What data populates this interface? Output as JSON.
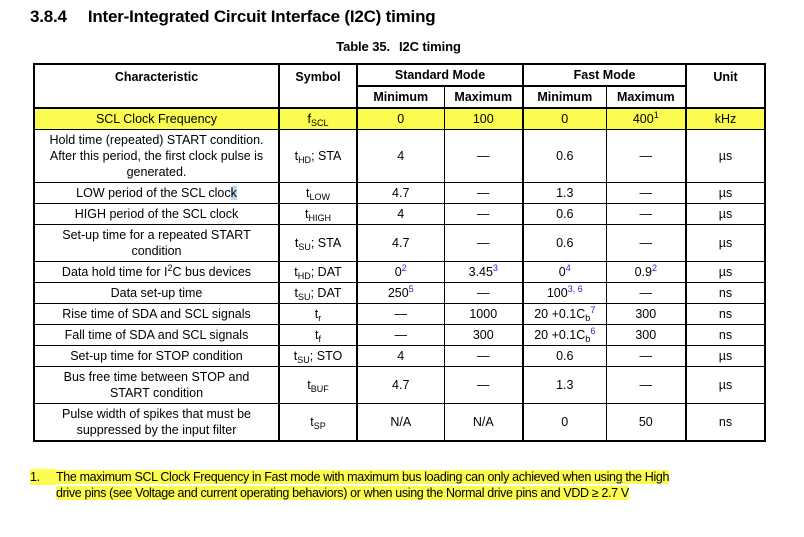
{
  "page": {
    "heading_number": "3.8.4",
    "heading_title": "Inter-Integrated Circuit Interface (I2C) timing",
    "caption_label": "Table 35.",
    "caption_title": "I2C timing"
  },
  "colors": {
    "highlight_yellow": "#fcfc50",
    "footnote_link_blue": "#2222dd",
    "selection_blue": "#b7d9f2"
  },
  "table": {
    "headers": {
      "characteristic": "Characteristic",
      "symbol": "Symbol",
      "standard_mode": "Standard Mode",
      "fast_mode": "Fast Mode",
      "unit": "Unit",
      "minimum": "Minimum",
      "maximum": "Maximum"
    },
    "rows": [
      {
        "highlight": true,
        "characteristic": [
          {
            "t": "SCL Clock Frequency"
          }
        ],
        "symbol": [
          {
            "t": "f"
          },
          {
            "t": "SCL",
            "s": "sub"
          }
        ],
        "std_min": [
          {
            "t": "0"
          }
        ],
        "std_max": [
          {
            "t": "100"
          }
        ],
        "fast_min": [
          {
            "t": "0"
          }
        ],
        "fast_max": [
          {
            "t": "400"
          },
          {
            "t": "1",
            "s": "sup"
          }
        ],
        "unit": [
          {
            "t": "kHz"
          }
        ]
      },
      {
        "highlight": false,
        "characteristic": [
          {
            "t": "Hold time (repeated) START condition."
          },
          {
            "s": "br"
          },
          {
            "t": "After this period, the first clock pulse is"
          },
          {
            "s": "br"
          },
          {
            "t": "generated."
          }
        ],
        "symbol": [
          {
            "t": "t"
          },
          {
            "t": "HD",
            "s": "sub"
          },
          {
            "t": "; STA"
          }
        ],
        "std_min": [
          {
            "t": "4"
          }
        ],
        "std_max": [
          {
            "t": "—"
          }
        ],
        "fast_min": [
          {
            "t": "0.6"
          }
        ],
        "fast_max": [
          {
            "t": "—"
          }
        ],
        "unit": [
          {
            "t": "µs"
          }
        ]
      },
      {
        "highlight": false,
        "characteristic": [
          {
            "t": "LOW period of the SCL cloc"
          },
          {
            "t": "k",
            "sel": true
          }
        ],
        "symbol": [
          {
            "t": "t"
          },
          {
            "t": "LOW",
            "s": "sub"
          }
        ],
        "std_min": [
          {
            "t": "4.7"
          }
        ],
        "std_max": [
          {
            "t": "—"
          }
        ],
        "fast_min": [
          {
            "t": "1.3"
          }
        ],
        "fast_max": [
          {
            "t": "—"
          }
        ],
        "unit": [
          {
            "t": "µs"
          }
        ]
      },
      {
        "highlight": false,
        "characteristic": [
          {
            "t": "HIGH period of the SCL clock"
          }
        ],
        "symbol": [
          {
            "t": "t"
          },
          {
            "t": "HIGH",
            "s": "sub"
          }
        ],
        "std_min": [
          {
            "t": "4"
          }
        ],
        "std_max": [
          {
            "t": "—"
          }
        ],
        "fast_min": [
          {
            "t": "0.6"
          }
        ],
        "fast_max": [
          {
            "t": "—"
          }
        ],
        "unit": [
          {
            "t": "µs"
          }
        ]
      },
      {
        "highlight": false,
        "characteristic": [
          {
            "t": "Set-up time for a repeated START"
          },
          {
            "s": "br"
          },
          {
            "t": "condition"
          }
        ],
        "symbol": [
          {
            "t": "t"
          },
          {
            "t": "SU",
            "s": "sub"
          },
          {
            "t": "; STA"
          }
        ],
        "std_min": [
          {
            "t": "4.7"
          }
        ],
        "std_max": [
          {
            "t": "—"
          }
        ],
        "fast_min": [
          {
            "t": "0.6"
          }
        ],
        "fast_max": [
          {
            "t": "—"
          }
        ],
        "unit": [
          {
            "t": "µs"
          }
        ]
      },
      {
        "highlight": false,
        "characteristic": [
          {
            "t": "Data hold time for I"
          },
          {
            "t": "2",
            "s": "sup"
          },
          {
            "t": "C bus devices"
          }
        ],
        "symbol": [
          {
            "t": "t"
          },
          {
            "t": "HD",
            "s": "sub"
          },
          {
            "t": "; DAT"
          }
        ],
        "std_min": [
          {
            "t": "0"
          },
          {
            "t": "2",
            "s": "sup",
            "c": "blue"
          }
        ],
        "std_max": [
          {
            "t": "3.45"
          },
          {
            "t": "3",
            "s": "sup",
            "c": "blue"
          }
        ],
        "fast_min": [
          {
            "t": "0"
          },
          {
            "t": "4",
            "s": "sup",
            "c": "blue"
          }
        ],
        "fast_max": [
          {
            "t": "0.9"
          },
          {
            "t": "2",
            "s": "sup",
            "c": "blue"
          }
        ],
        "unit": [
          {
            "t": "µs"
          }
        ]
      },
      {
        "highlight": false,
        "characteristic": [
          {
            "t": "Data set-up time"
          }
        ],
        "symbol": [
          {
            "t": "t"
          },
          {
            "t": "SU",
            "s": "sub"
          },
          {
            "t": "; DAT"
          }
        ],
        "std_min": [
          {
            "t": "250"
          },
          {
            "t": "5",
            "s": "sup",
            "c": "blue"
          }
        ],
        "std_max": [
          {
            "t": "—"
          }
        ],
        "fast_min": [
          {
            "t": "100"
          },
          {
            "t": "3, 6",
            "s": "sup",
            "c": "blue"
          }
        ],
        "fast_max": [
          {
            "t": "—"
          }
        ],
        "unit": [
          {
            "t": "ns"
          }
        ]
      },
      {
        "highlight": false,
        "characteristic": [
          {
            "t": "Rise time of SDA and SCL signals"
          }
        ],
        "symbol": [
          {
            "t": "t"
          },
          {
            "t": "r",
            "s": "sub"
          }
        ],
        "std_min": [
          {
            "t": "—"
          }
        ],
        "std_max": [
          {
            "t": "1000"
          }
        ],
        "fast_min": [
          {
            "t": "20 +0.1C"
          },
          {
            "t": "b",
            "s": "sub"
          },
          {
            "t": "7",
            "s": "sup",
            "c": "blue"
          }
        ],
        "fast_max": [
          {
            "t": "300"
          }
        ],
        "unit": [
          {
            "t": "ns"
          }
        ]
      },
      {
        "highlight": false,
        "characteristic": [
          {
            "t": "Fall time of SDA and SCL signals"
          }
        ],
        "symbol": [
          {
            "t": "t"
          },
          {
            "t": "f",
            "s": "sub"
          }
        ],
        "std_min": [
          {
            "t": "—"
          }
        ],
        "std_max": [
          {
            "t": "300"
          }
        ],
        "fast_min": [
          {
            "t": "20 +0.1C"
          },
          {
            "t": "b",
            "s": "sub"
          },
          {
            "t": "6",
            "s": "sup",
            "c": "blue"
          }
        ],
        "fast_max": [
          {
            "t": "300"
          }
        ],
        "unit": [
          {
            "t": "ns"
          }
        ]
      },
      {
        "highlight": false,
        "characteristic": [
          {
            "t": "Set-up time for STOP condition"
          }
        ],
        "symbol": [
          {
            "t": "t"
          },
          {
            "t": "SU",
            "s": "sub"
          },
          {
            "t": "; STO"
          }
        ],
        "std_min": [
          {
            "t": "4"
          }
        ],
        "std_max": [
          {
            "t": "—"
          }
        ],
        "fast_min": [
          {
            "t": "0.6"
          }
        ],
        "fast_max": [
          {
            "t": "—"
          }
        ],
        "unit": [
          {
            "t": "µs"
          }
        ]
      },
      {
        "highlight": false,
        "characteristic": [
          {
            "t": "Bus free time between STOP and"
          },
          {
            "s": "br"
          },
          {
            "t": "START condition"
          }
        ],
        "symbol": [
          {
            "t": "t"
          },
          {
            "t": "BUF",
            "s": "sub"
          }
        ],
        "std_min": [
          {
            "t": "4.7"
          }
        ],
        "std_max": [
          {
            "t": "—"
          }
        ],
        "fast_min": [
          {
            "t": "1.3"
          }
        ],
        "fast_max": [
          {
            "t": "—"
          }
        ],
        "unit": [
          {
            "t": "µs"
          }
        ]
      },
      {
        "highlight": false,
        "characteristic": [
          {
            "t": "Pulse width of spikes that must be"
          },
          {
            "s": "br"
          },
          {
            "t": "suppressed by the input filter"
          }
        ],
        "symbol": [
          {
            "t": "t"
          },
          {
            "t": "SP",
            "s": "sub"
          }
        ],
        "std_min": [
          {
            "t": "N/A"
          }
        ],
        "std_max": [
          {
            "t": "N/A"
          }
        ],
        "fast_min": [
          {
            "t": "0"
          }
        ],
        "fast_max": [
          {
            "t": "50"
          }
        ],
        "unit": [
          {
            "t": "ns"
          }
        ]
      }
    ]
  },
  "footnote": {
    "number": "1.",
    "lines": [
      "The maximum SCL Clock Frequency in Fast mode with maximum bus loading can only achieved when using the High",
      "drive pins (see Voltage and current operating behaviors) or when using the Normal drive pins and VDD ≥ 2.7 V"
    ]
  }
}
